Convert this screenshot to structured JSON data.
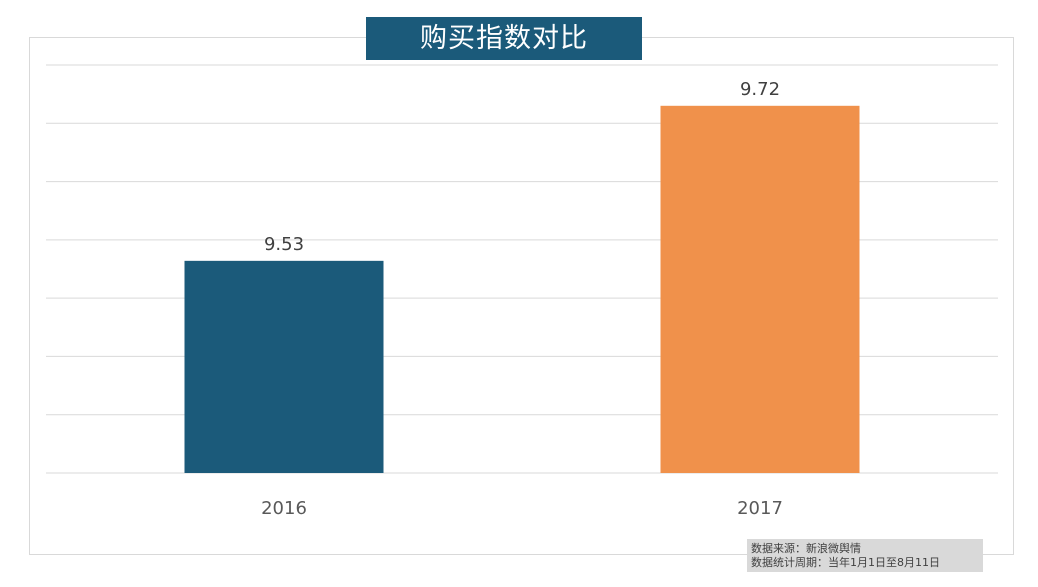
{
  "title": "购买指数对比",
  "chart_data": {
    "type": "bar",
    "title": "购买指数对比",
    "categories": [
      "2016",
      "2017"
    ],
    "values": [
      9.53,
      9.72
    ],
    "data_labels": [
      "9.53",
      "9.72"
    ],
    "bar_colors": [
      "#1b5a7a",
      "#f0914b"
    ],
    "ylim": [
      9.27,
      9.77
    ],
    "grid": true,
    "legend": "none",
    "xlabel": "",
    "ylabel": ""
  },
  "source": {
    "line1": "数据来源：新浪微舆情",
    "line2": "数据统计周期：当年1月1日至8月11日"
  },
  "colors": {
    "accent": "#1b5a7a",
    "highlight": "#f0914b",
    "grid": "#d9d9d9"
  }
}
